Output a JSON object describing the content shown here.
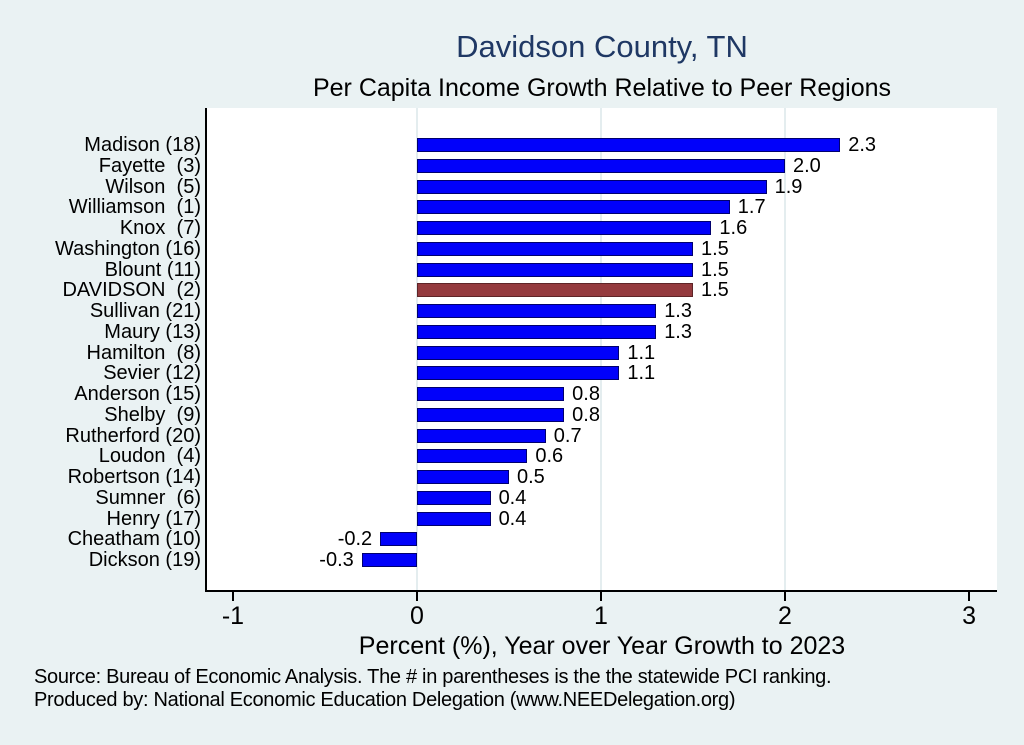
{
  "footer": {
    "line1": "Source: Bureau of Economic Analysis. The # in parentheses is the the statewide PCI ranking.",
    "line2": "Produced by: National Economic Education Delegation (www.NEEDelegation.org)"
  },
  "chart_data": {
    "type": "bar",
    "orientation": "horizontal",
    "title": "Davidson County, TN",
    "subtitle": "Per Capita Income Growth Relative to Peer Regions",
    "xlabel": "Percent (%), Year over Year Growth to 2023",
    "categories": [
      "Madison (18)",
      "Fayette  (3)",
      "Wilson  (5)",
      "Williamson  (1)",
      "Knox  (7)",
      "Washington (16)",
      "Blount (11)",
      "DAVIDSON  (2)",
      "Sullivan (21)",
      "Maury (13)",
      "Hamilton  (8)",
      "Sevier (12)",
      "Anderson (15)",
      "Shelby  (9)",
      "Rutherford (20)",
      "Loudon  (4)",
      "Robertson (14)",
      "Sumner  (6)",
      "Henry (17)",
      "Cheatham (10)",
      "Dickson (19)"
    ],
    "values": [
      2.3,
      2.0,
      1.9,
      1.7,
      1.6,
      1.5,
      1.5,
      1.5,
      1.3,
      1.3,
      1.1,
      1.1,
      0.8,
      0.8,
      0.7,
      0.6,
      0.5,
      0.4,
      0.4,
      -0.2,
      -0.3
    ],
    "value_labels": [
      "2.3",
      "2.0",
      "1.9",
      "1.7",
      "1.6",
      "1.5",
      "1.5",
      "1.5",
      "1.3",
      "1.3",
      "1.1",
      "1.1",
      "0.8",
      "0.8",
      "0.7",
      "0.6",
      "0.5",
      "0.4",
      "0.4",
      "-0.2",
      "-0.3"
    ],
    "highlight_index": 7,
    "highlight_category": "DAVIDSON  (2)",
    "xticks": [
      -1,
      0,
      1,
      2,
      3
    ],
    "grid_ticks": [
      0,
      1,
      2
    ],
    "xlim": [
      -1.141,
      3.152
    ],
    "legend": "none",
    "grid": "vertical-major",
    "colors": {
      "background": "#eaf2f3",
      "plot_background": "#ffffff",
      "bar": "#0101fa",
      "bar_outline": "#00006e",
      "highlight_bar": "#943a3e",
      "highlight_outline": "#5e2427",
      "grid": "#e4edef",
      "axis": "#000000",
      "title_text": "#1f3864",
      "text": "#000000"
    }
  }
}
